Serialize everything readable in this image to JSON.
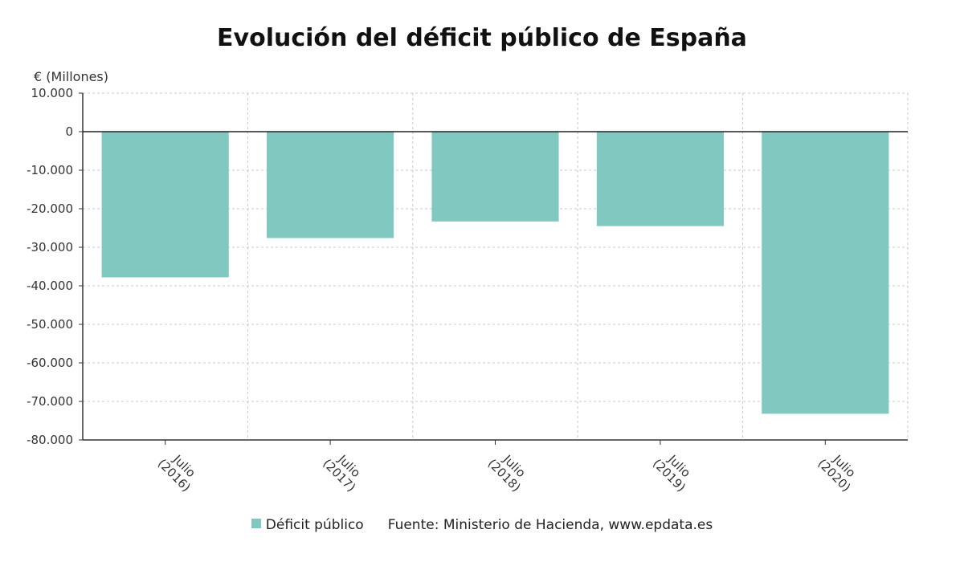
{
  "chart_data": {
    "type": "bar",
    "title": "Evolución del déficit público de España",
    "ylabel": "€ (Millones)",
    "xlabel": "",
    "categories": [
      [
        "Julio",
        "(2016)"
      ],
      [
        "Julio",
        "(2017)"
      ],
      [
        "Julio",
        "(2018)"
      ],
      [
        "Julio",
        "(2019)"
      ],
      [
        "Julio",
        "(2020)"
      ]
    ],
    "series": [
      {
        "name": "Déficit público",
        "values": [
          -37800,
          -27600,
          -23300,
          -24500,
          -73200
        ]
      }
    ],
    "ylim": [
      -80000,
      10000
    ],
    "yticks": [
      10000,
      0,
      -10000,
      -20000,
      -30000,
      -40000,
      -50000,
      -60000,
      -70000,
      -80000
    ],
    "ytick_labels": [
      "10.000",
      "0",
      "-10.000",
      "-20.000",
      "-30.000",
      "-40.000",
      "-50.000",
      "-60.000",
      "-70.000",
      "-80.000"
    ],
    "grid": true,
    "legend_position": "bottom",
    "bar_color": "#80c8c0"
  },
  "source": "Fuente: Ministerio de Hacienda, www.epdata.es"
}
